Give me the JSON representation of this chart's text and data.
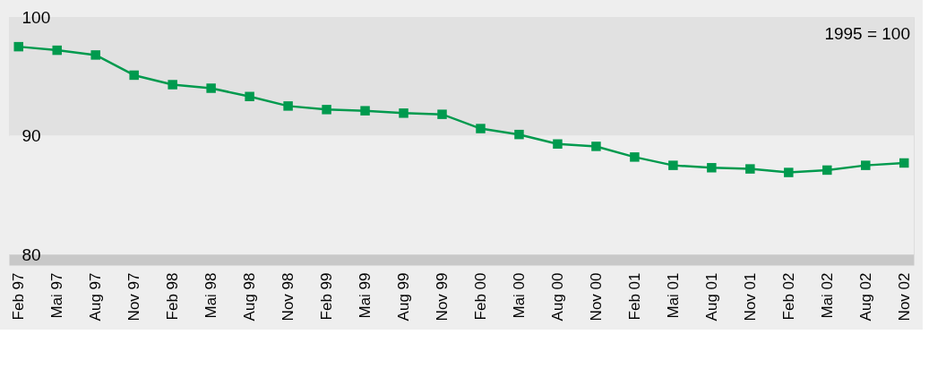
{
  "chart_data": {
    "type": "line",
    "categories": [
      "Feb 97",
      "Mai 97",
      "Aug 97",
      "Nov 97",
      "Feb 98",
      "Mai 98",
      "Aug 98",
      "Nov 98",
      "Feb 99",
      "Mai 99",
      "Aug 99",
      "Nov 99",
      "Feb 00",
      "Mai 00",
      "Aug 00",
      "Nov 00",
      "Feb 01",
      "Mai 01",
      "Aug 01",
      "Nov 01",
      "Feb 02",
      "Mai 02",
      "Aug 02",
      "Nov 02"
    ],
    "series": [
      {
        "color": "#009a4e",
        "values": [
          97.5,
          97.2,
          96.8,
          95.1,
          94.3,
          94.0,
          93.3,
          92.5,
          92.2,
          92.1,
          91.9,
          91.8,
          90.6,
          90.1,
          89.3,
          89.1,
          88.2,
          87.5,
          87.3,
          87.2,
          86.9,
          87.1,
          87.5,
          87.7
        ]
      }
    ],
    "ylim": [
      80,
      100
    ],
    "yticks": [
      80,
      90,
      100
    ],
    "bands": [
      {
        "axis": "y",
        "from": 90,
        "to": 100,
        "color": "#e1e1e1"
      },
      {
        "axis": "y",
        "from": 80,
        "to": 90,
        "color": "#eeeeee"
      }
    ],
    "annotations": [
      "1995 = 100"
    ],
    "marker": "square",
    "line_style": "solid"
  }
}
